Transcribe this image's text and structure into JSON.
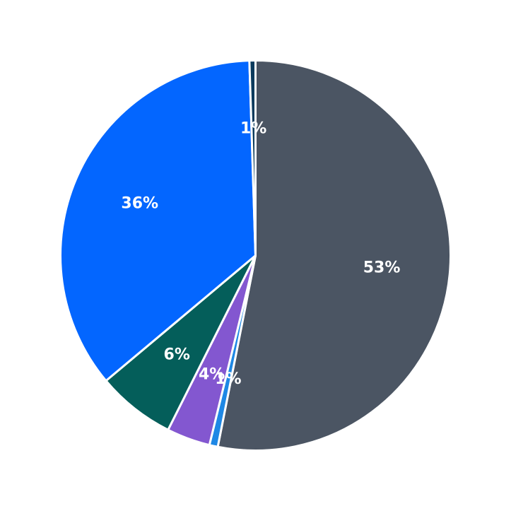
{
  "chart_data": {
    "type": "pie",
    "title": "",
    "start_angle_deg": 90,
    "direction": "clockwise",
    "slices": [
      {
        "label": "53%",
        "value": 53.1,
        "color": "#4b5563"
      },
      {
        "label": "1%",
        "value": 0.7,
        "color": "#1e88e5"
      },
      {
        "label": "4%",
        "value": 3.6,
        "color": "#8357d0"
      },
      {
        "label": "6%",
        "value": 6.5,
        "color": "#045e5a"
      },
      {
        "label": "36%",
        "value": 35.6,
        "color": "#0366ff"
      },
      {
        "label": "1%",
        "value": 0.5,
        "color": "#0a3a5c"
      }
    ]
  }
}
